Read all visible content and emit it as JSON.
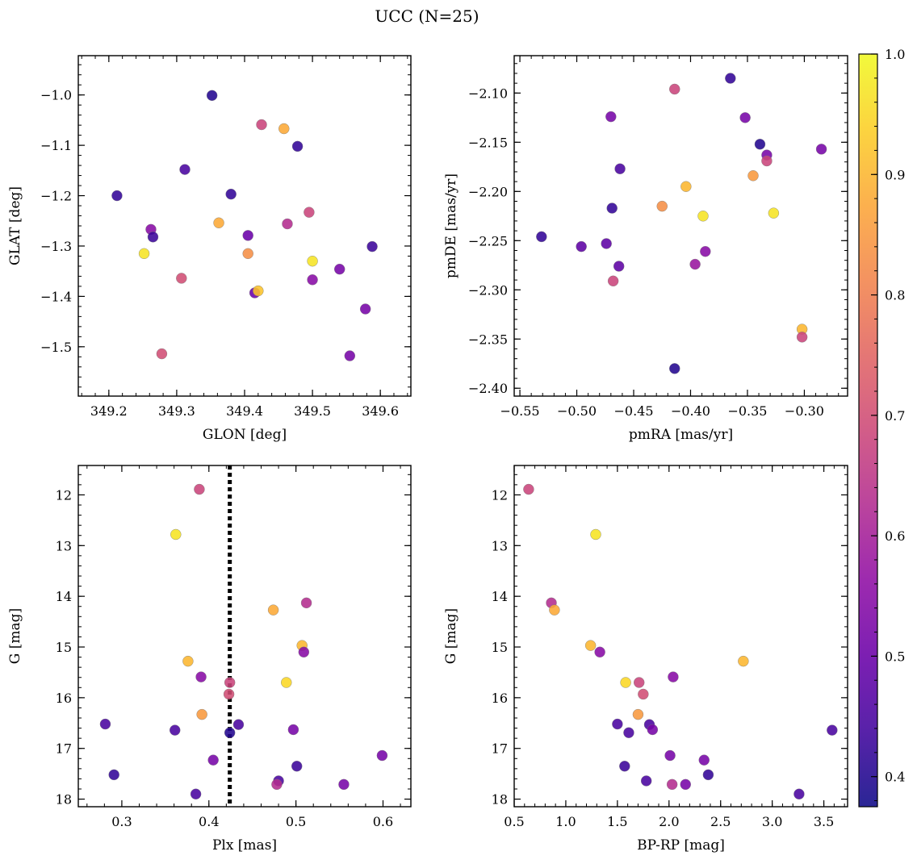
{
  "figure": {
    "title": "UCC (N=25)"
  },
  "colorbar": {
    "range": [
      0.375,
      1.0
    ],
    "ticks": [
      0.4,
      0.5,
      0.6,
      0.7,
      0.8,
      0.9,
      1.0
    ],
    "tick_labels": [
      "0.4",
      "0.5",
      "0.6",
      "0.7",
      "0.8",
      "0.9",
      "1.0"
    ],
    "colormap": "plasma"
  },
  "chart_data": [
    {
      "id": "glon-glat",
      "type": "scatter",
      "xlabel": "GLON [deg]",
      "ylabel": "GLAT [deg]",
      "xlim": [
        349.155,
        349.645
      ],
      "ylim": [
        -1.598,
        -0.922
      ],
      "yinverted": false,
      "xticks": [
        349.2,
        349.3,
        349.4,
        349.5,
        349.6
      ],
      "xtick_labels": [
        "349.2",
        "349.3",
        "349.4",
        "349.5",
        "349.6"
      ],
      "yticks": [
        -1.0,
        -1.1,
        -1.2,
        -1.3,
        -1.4,
        -1.5
      ],
      "ytick_labels": [
        "−1.0",
        "−1.1",
        "−1.2",
        "−1.3",
        "−1.4",
        "−1.5"
      ],
      "points": [
        {
          "x": 349.352,
          "y": -1.001,
          "p": 0.4
        },
        {
          "x": 349.425,
          "y": -1.059,
          "p": 0.68
        },
        {
          "x": 349.458,
          "y": -1.067,
          "p": 0.88
        },
        {
          "x": 349.478,
          "y": -1.102,
          "p": 0.42
        },
        {
          "x": 349.312,
          "y": -1.148,
          "p": 0.45
        },
        {
          "x": 349.212,
          "y": -1.2,
          "p": 0.42
        },
        {
          "x": 349.38,
          "y": -1.197,
          "p": 0.42
        },
        {
          "x": 349.362,
          "y": -1.254,
          "p": 0.88
        },
        {
          "x": 349.463,
          "y": -1.256,
          "p": 0.63
        },
        {
          "x": 349.495,
          "y": -1.233,
          "p": 0.68
        },
        {
          "x": 349.262,
          "y": -1.267,
          "p": 0.55
        },
        {
          "x": 349.265,
          "y": -1.282,
          "p": 0.43
        },
        {
          "x": 349.405,
          "y": -1.279,
          "p": 0.5
        },
        {
          "x": 349.252,
          "y": -1.315,
          "p": 0.97
        },
        {
          "x": 349.405,
          "y": -1.315,
          "p": 0.83
        },
        {
          "x": 349.5,
          "y": -1.33,
          "p": 0.97
        },
        {
          "x": 349.588,
          "y": -1.301,
          "p": 0.43
        },
        {
          "x": 349.307,
          "y": -1.364,
          "p": 0.7
        },
        {
          "x": 349.54,
          "y": -1.346,
          "p": 0.52
        },
        {
          "x": 349.5,
          "y": -1.367,
          "p": 0.55
        },
        {
          "x": 349.415,
          "y": -1.393,
          "p": 0.5
        },
        {
          "x": 349.42,
          "y": -1.389,
          "p": 0.92
        },
        {
          "x": 349.578,
          "y": -1.425,
          "p": 0.52
        },
        {
          "x": 349.278,
          "y": -1.514,
          "p": 0.7
        },
        {
          "x": 349.555,
          "y": -1.518,
          "p": 0.52
        }
      ]
    },
    {
      "id": "pmra-pmde",
      "type": "scatter",
      "xlabel": "pmRA [mas/yr]",
      "ylabel": "pmDE [mas/yr]",
      "xlim": [
        -0.555,
        -0.262
      ],
      "ylim": [
        -2.408,
        -2.062
      ],
      "yinverted": false,
      "xticks": [
        -0.55,
        -0.5,
        -0.45,
        -0.4,
        -0.35,
        -0.3
      ],
      "xtick_labels": [
        "−0.55",
        "−0.50",
        "−0.45",
        "−0.40",
        "−0.35",
        "−0.30"
      ],
      "yticks": [
        -2.1,
        -2.15,
        -2.2,
        -2.25,
        -2.3,
        -2.35,
        -2.4
      ],
      "ytick_labels": [
        "−2.10",
        "−2.15",
        "−2.20",
        "−2.25",
        "−2.30",
        "−2.35",
        "−2.40"
      ],
      "points": [
        {
          "x": -0.365,
          "y": -2.085,
          "p": 0.42
        },
        {
          "x": -0.414,
          "y": -2.096,
          "p": 0.68
        },
        {
          "x": -0.47,
          "y": -2.124,
          "p": 0.52
        },
        {
          "x": -0.352,
          "y": -2.125,
          "p": 0.52
        },
        {
          "x": -0.339,
          "y": -2.152,
          "p": 0.4
        },
        {
          "x": -0.333,
          "y": -2.163,
          "p": 0.52
        },
        {
          "x": -0.333,
          "y": -2.169,
          "p": 0.68
        },
        {
          "x": -0.285,
          "y": -2.157,
          "p": 0.52
        },
        {
          "x": -0.462,
          "y": -2.177,
          "p": 0.45
        },
        {
          "x": -0.345,
          "y": -2.184,
          "p": 0.85
        },
        {
          "x": -0.404,
          "y": -2.195,
          "p": 0.9
        },
        {
          "x": -0.469,
          "y": -2.217,
          "p": 0.42
        },
        {
          "x": -0.425,
          "y": -2.215,
          "p": 0.83
        },
        {
          "x": -0.389,
          "y": -2.225,
          "p": 0.97
        },
        {
          "x": -0.327,
          "y": -2.222,
          "p": 0.97
        },
        {
          "x": -0.531,
          "y": -2.246,
          "p": 0.42
        },
        {
          "x": -0.496,
          "y": -2.256,
          "p": 0.48
        },
        {
          "x": -0.474,
          "y": -2.253,
          "p": 0.48
        },
        {
          "x": -0.387,
          "y": -2.261,
          "p": 0.55
        },
        {
          "x": -0.463,
          "y": -2.276,
          "p": 0.48
        },
        {
          "x": -0.396,
          "y": -2.274,
          "p": 0.58
        },
        {
          "x": -0.468,
          "y": -2.291,
          "p": 0.68
        },
        {
          "x": -0.302,
          "y": -2.34,
          "p": 0.9
        },
        {
          "x": -0.302,
          "y": -2.348,
          "p": 0.68
        },
        {
          "x": -0.414,
          "y": -2.38,
          "p": 0.4
        }
      ]
    },
    {
      "id": "plx-g",
      "type": "scatter",
      "xlabel": "Plx [mas]",
      "ylabel": "G [mag]",
      "xlim": [
        0.25,
        0.632
      ],
      "ylim": [
        11.42,
        18.15
      ],
      "yinverted": true,
      "xticks": [
        0.3,
        0.4,
        0.5,
        0.6
      ],
      "xtick_labels": [
        "0.3",
        "0.4",
        "0.5",
        "0.6"
      ],
      "yticks": [
        12,
        13,
        14,
        15,
        16,
        17,
        18
      ],
      "ytick_labels": [
        "12",
        "13",
        "14",
        "15",
        "16",
        "17",
        "18"
      ],
      "vline": {
        "x": 0.424
      },
      "points": [
        {
          "x": 0.389,
          "y": 11.89,
          "p": 0.68
        },
        {
          "x": 0.362,
          "y": 12.78,
          "p": 0.97
        },
        {
          "x": 0.474,
          "y": 14.27,
          "p": 0.88
        },
        {
          "x": 0.512,
          "y": 14.13,
          "p": 0.63
        },
        {
          "x": 0.507,
          "y": 14.97,
          "p": 0.9
        },
        {
          "x": 0.509,
          "y": 15.1,
          "p": 0.55
        },
        {
          "x": 0.376,
          "y": 15.28,
          "p": 0.9
        },
        {
          "x": 0.391,
          "y": 15.59,
          "p": 0.55
        },
        {
          "x": 0.424,
          "y": 15.7,
          "p": 0.68
        },
        {
          "x": 0.489,
          "y": 15.7,
          "p": 0.95
        },
        {
          "x": 0.423,
          "y": 15.93,
          "p": 0.7
        },
        {
          "x": 0.392,
          "y": 16.33,
          "p": 0.85
        },
        {
          "x": 0.281,
          "y": 16.52,
          "p": 0.45
        },
        {
          "x": 0.361,
          "y": 16.64,
          "p": 0.45
        },
        {
          "x": 0.434,
          "y": 16.53,
          "p": 0.45
        },
        {
          "x": 0.424,
          "y": 16.69,
          "p": 0.4
        },
        {
          "x": 0.497,
          "y": 16.63,
          "p": 0.52
        },
        {
          "x": 0.405,
          "y": 17.23,
          "p": 0.52
        },
        {
          "x": 0.501,
          "y": 17.35,
          "p": 0.43
        },
        {
          "x": 0.599,
          "y": 17.14,
          "p": 0.52
        },
        {
          "x": 0.291,
          "y": 17.52,
          "p": 0.42
        },
        {
          "x": 0.48,
          "y": 17.64,
          "p": 0.45
        },
        {
          "x": 0.478,
          "y": 17.71,
          "p": 0.63
        },
        {
          "x": 0.555,
          "y": 17.71,
          "p": 0.52
        },
        {
          "x": 0.385,
          "y": 17.9,
          "p": 0.45
        }
      ]
    },
    {
      "id": "bprp-g",
      "type": "scatter",
      "xlabel": "BP-RP [mag]",
      "ylabel": "G [mag]",
      "xlim": [
        0.5,
        3.73
      ],
      "ylim": [
        11.42,
        18.15
      ],
      "yinverted": true,
      "xticks": [
        0.5,
        1.0,
        1.5,
        2.0,
        2.5,
        3.0,
        3.5
      ],
      "xtick_labels": [
        "0.5",
        "1.0",
        "1.5",
        "2.0",
        "2.5",
        "3.0",
        "3.5"
      ],
      "yticks": [
        12,
        13,
        14,
        15,
        16,
        17,
        18
      ],
      "ytick_labels": [
        "12",
        "13",
        "14",
        "15",
        "16",
        "17",
        "18"
      ],
      "points": [
        {
          "x": 0.64,
          "y": 11.89,
          "p": 0.68
        },
        {
          "x": 1.29,
          "y": 12.78,
          "p": 0.97
        },
        {
          "x": 0.86,
          "y": 14.13,
          "p": 0.63
        },
        {
          "x": 0.89,
          "y": 14.27,
          "p": 0.88
        },
        {
          "x": 1.24,
          "y": 14.97,
          "p": 0.9
        },
        {
          "x": 1.33,
          "y": 15.1,
          "p": 0.55
        },
        {
          "x": 2.72,
          "y": 15.28,
          "p": 0.9
        },
        {
          "x": 2.04,
          "y": 15.59,
          "p": 0.55
        },
        {
          "x": 1.58,
          "y": 15.7,
          "p": 0.95
        },
        {
          "x": 1.71,
          "y": 15.7,
          "p": 0.68
        },
        {
          "x": 1.75,
          "y": 15.93,
          "p": 0.7
        },
        {
          "x": 1.7,
          "y": 16.33,
          "p": 0.85
        },
        {
          "x": 1.5,
          "y": 16.52,
          "p": 0.45
        },
        {
          "x": 1.61,
          "y": 16.69,
          "p": 0.45
        },
        {
          "x": 1.81,
          "y": 16.53,
          "p": 0.45
        },
        {
          "x": 1.84,
          "y": 16.63,
          "p": 0.52
        },
        {
          "x": 3.58,
          "y": 16.64,
          "p": 0.45
        },
        {
          "x": 2.01,
          "y": 17.14,
          "p": 0.52
        },
        {
          "x": 2.34,
          "y": 17.23,
          "p": 0.52
        },
        {
          "x": 1.57,
          "y": 17.35,
          "p": 0.43
        },
        {
          "x": 2.38,
          "y": 17.52,
          "p": 0.42
        },
        {
          "x": 1.78,
          "y": 17.64,
          "p": 0.45
        },
        {
          "x": 2.03,
          "y": 17.71,
          "p": 0.63
        },
        {
          "x": 2.16,
          "y": 17.71,
          "p": 0.52
        },
        {
          "x": 3.26,
          "y": 17.9,
          "p": 0.45
        }
      ]
    }
  ]
}
